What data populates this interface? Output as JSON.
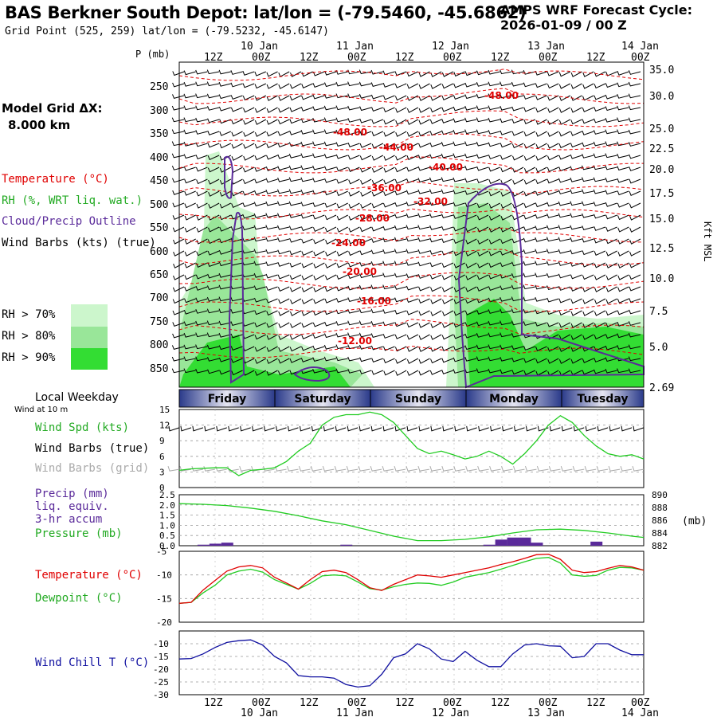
{
  "header": {
    "station_title": "BAS Berkner South Depot:  lat/lon = (-79.5460, -45.6862)",
    "grid_point": "Grid Point (525, 259) lat/lon = (-79.5232, -45.6147)",
    "cycle_line1": "AMPS WRF Forecast Cycle:",
    "cycle_line2": "2026-01-09 / 00  Z"
  },
  "left_panel": {
    "model_grid_label": "Model Grid ΔX:",
    "model_grid_value": "8.000 km",
    "temperature": "Temperature (°C)",
    "rh": "RH (%, WRT liq. wat.)",
    "cloud": "Cloud/Precip Outline",
    "wind": "Wind Barbs (kts) (true)",
    "rh70": "RH > 70%",
    "rh80": "RH > 80%",
    "rh90": "RH > 90%",
    "weekday_label": "Local Weekday",
    "wind_10m": "Wind at 10 m",
    "wspd": "Wind Spd (kts)",
    "wbarb_true": "Wind Barbs (true)",
    "wbarb_grid": "Wind Barbs (grid)",
    "precip1": "Precip (mm)",
    "precip2": "liq. equiv.",
    "precip3": "3-hr accum",
    "pressure": "Pressure (mb)",
    "temp2": "Temperature (°C)",
    "dew": "Dewpoint (°C)",
    "chill": "Wind Chill T (°C)"
  },
  "colors": {
    "temp": "#e00000",
    "green": "#22cc22",
    "purple": "#5a2a9a",
    "blue": "#1010a0",
    "rh70": "#ccf6cc",
    "rh80": "#99e699",
    "rh90": "#33dd33",
    "grid_barb": "#aaaaaa"
  },
  "chart_data": [
    {
      "type": "time-height cross section",
      "ylabel": "P (mb)",
      "y2label": "Kft MSL",
      "pressure_ticks": [
        "250",
        "300",
        "350",
        "400",
        "450",
        "500",
        "550",
        "600",
        "650",
        "700",
        "750",
        "800",
        "850"
      ],
      "kft_ticks": [
        "35.0",
        "30.0",
        "25.0",
        "22.5",
        "20.0",
        "17.5",
        "15.0",
        "12.5",
        "10.0",
        "7.5",
        "5.0",
        "2.69"
      ],
      "time_top_hours": [
        "12Z",
        "00Z",
        "12Z",
        "00Z",
        "12Z",
        "00Z",
        "12Z",
        "00Z",
        "12Z",
        "00Z"
      ],
      "time_top_dates": [
        "10 Jan",
        "11 Jan",
        "12 Jan",
        "13 Jan",
        "14 Jan"
      ],
      "isotherm_labels": [
        "-48.00",
        "-48.00",
        "-44.00",
        "-40.00",
        "-36.00",
        "-32.00",
        "-28.00",
        "-24.00",
        "-20.00",
        "-16.00",
        "-12.00"
      ],
      "weekdays": [
        "Friday",
        "Saturday",
        "Sunday",
        "Monday",
        "Tuesday"
      ]
    },
    {
      "type": "line",
      "title": "Wind Spd (kts)",
      "yticks": [
        "15",
        "12",
        "9",
        "6",
        "3",
        "0"
      ],
      "ylim": [
        0,
        15
      ],
      "x_hours": [
        0,
        3,
        6,
        9,
        12,
        15,
        18,
        21,
        24,
        27,
        30,
        33,
        36,
        39,
        42,
        45,
        48,
        51,
        54,
        57,
        60,
        63,
        66,
        69,
        72,
        75,
        78,
        81,
        84,
        87,
        90,
        93,
        96,
        99,
        102,
        105,
        108,
        111,
        114,
        117
      ],
      "values": [
        3.3,
        3.6,
        3.7,
        3.8,
        3.8,
        2.3,
        3.3,
        3.5,
        3.8,
        5,
        7,
        8.5,
        12,
        13.5,
        14,
        14,
        14.5,
        14,
        12.5,
        10,
        7.5,
        6.5,
        7,
        6.3,
        5.5,
        6,
        7,
        6,
        4.5,
        6.5,
        9,
        12,
        13.8,
        12.5,
        10,
        8,
        6.5,
        6,
        6.3,
        5.5
      ]
    },
    {
      "type": "bar+line",
      "title": "Precip (mm) / Pressure (mb)",
      "yticks_left": [
        "2.5",
        "2.0",
        "1.5",
        "1.0",
        "0.5",
        "0.0"
      ],
      "yticks_right": [
        "890",
        "888",
        "886",
        "884",
        "882"
      ],
      "ylim_left": [
        0,
        2.5
      ],
      "ylim_right": [
        882,
        890
      ],
      "precip_x_hours": [
        6,
        9,
        12,
        42,
        78,
        81,
        84,
        87,
        90,
        105
      ],
      "precip_values": [
        0.05,
        0.1,
        0.15,
        0.05,
        0.05,
        0.3,
        0.4,
        0.4,
        0.15,
        0.2
      ],
      "pressure_x_hours": [
        0,
        6,
        12,
        18,
        24,
        30,
        36,
        42,
        48,
        54,
        60,
        66,
        72,
        78,
        84,
        90,
        96,
        102,
        108,
        114,
        117
      ],
      "pressure_values": [
        888.6,
        888.5,
        888.3,
        887.9,
        887.4,
        886.7,
        885.9,
        885.3,
        884.4,
        883.5,
        882.8,
        882.8,
        883,
        883.4,
        884,
        884.5,
        884.6,
        884.4,
        884,
        883.5,
        883.3
      ]
    },
    {
      "type": "line",
      "title": "Temperature / Dewpoint (°C)",
      "yticks": [
        "-5",
        "-10",
        "-15",
        "-20"
      ],
      "ylim": [
        -20,
        -5
      ],
      "x_hours": [
        0,
        3,
        6,
        9,
        12,
        15,
        18,
        21,
        24,
        27,
        30,
        33,
        36,
        39,
        42,
        45,
        48,
        51,
        54,
        57,
        60,
        63,
        66,
        69,
        72,
        75,
        78,
        81,
        84,
        87,
        90,
        93,
        96,
        99,
        102,
        105,
        108,
        111,
        114,
        117
      ],
      "temperature": [
        -16,
        -15.8,
        -13.2,
        -11.2,
        -9.2,
        -8.3,
        -8,
        -8.5,
        -10.5,
        -11.7,
        -13,
        -11,
        -9.3,
        -9,
        -9.5,
        -11,
        -12.7,
        -13.3,
        -12,
        -11,
        -10,
        -10.2,
        -10.5,
        -10,
        -9.5,
        -9,
        -8.5,
        -7.8,
        -7.2,
        -6.5,
        -5.7,
        -5.6,
        -6.7,
        -9,
        -9.5,
        -9.3,
        -8.6,
        -8,
        -8.3,
        -9
      ],
      "dewpoint": [
        -16,
        -15.8,
        -13.8,
        -12.2,
        -10,
        -9.2,
        -8.8,
        -9.4,
        -11,
        -12,
        -13,
        -11.8,
        -10.2,
        -10,
        -10.2,
        -11.5,
        -12.9,
        -13.2,
        -12.5,
        -12,
        -11.7,
        -11.8,
        -12.2,
        -11.5,
        -10.5,
        -10,
        -9.5,
        -8.8,
        -8,
        -7.2,
        -6.5,
        -6.3,
        -7.5,
        -10,
        -10.3,
        -10.1,
        -9,
        -8.4,
        -8.5,
        -9
      ]
    },
    {
      "type": "line",
      "title": "Wind Chill T (°C)",
      "yticks": [
        "-10",
        "-15",
        "-20",
        "-25",
        "-30"
      ],
      "ylim": [
        -30,
        -5
      ],
      "x_hours": [
        0,
        3,
        6,
        9,
        12,
        15,
        18,
        21,
        24,
        27,
        30,
        33,
        36,
        39,
        42,
        45,
        48,
        51,
        54,
        57,
        60,
        63,
        66,
        69,
        72,
        75,
        78,
        81,
        84,
        87,
        90,
        93,
        96,
        99,
        102,
        105,
        108,
        111,
        114,
        117
      ],
      "values": [
        -16,
        -15.8,
        -14,
        -11.5,
        -9.5,
        -8.8,
        -8.5,
        -10.5,
        -15,
        -17.5,
        -22.5,
        -23,
        -23,
        -23.5,
        -26,
        -27,
        -26.5,
        -22,
        -15.5,
        -14,
        -10,
        -12,
        -16,
        -17,
        -13,
        -16.5,
        -19,
        -19,
        -14,
        -10.5,
        -10,
        -10.8,
        -11,
        -15.5,
        -15,
        -10,
        -10,
        -12.5,
        -14.3,
        -14.3
      ]
    }
  ],
  "bottom_axis": {
    "hours": [
      "12Z",
      "00Z",
      "12Z",
      "00Z",
      "12Z",
      "00Z",
      "12Z",
      "00Z",
      "12Z",
      "00Z"
    ],
    "dates": [
      "10 Jan",
      "11 Jan",
      "12 Jan",
      "13 Jan",
      "14 Jan"
    ]
  },
  "panel_units": {
    "precip_right": "(mb)"
  }
}
